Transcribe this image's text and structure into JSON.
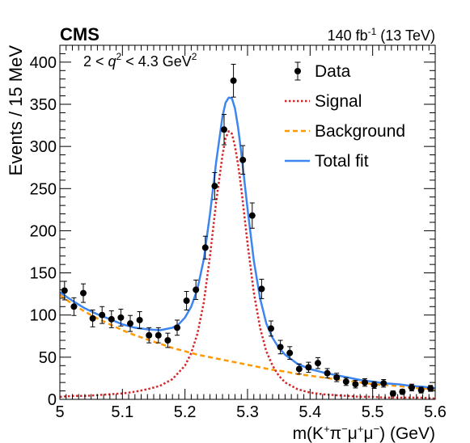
{
  "header": {
    "experiment": "CMS",
    "lumi_prefix": "140 fb",
    "lumi_exp": "-1",
    "lumi_suffix": " (13 TeV)"
  },
  "annotation": {
    "cut_pre": "2 < ",
    "cut_var": "q",
    "cut_exp1": "2",
    "cut_mid": " < 4.3 GeV",
    "cut_exp2": "2"
  },
  "axes": {
    "ylabel": "Events / 15 MeV",
    "xlabel_pre": "m(K",
    "xlabel_s1": "+",
    "xlabel_m1": "π",
    "xlabel_s2": "−",
    "xlabel_m2": "μ",
    "xlabel_s3": "+",
    "xlabel_m3": "μ",
    "xlabel_s4": "−",
    "xlabel_post": ") (GeV)"
  },
  "legend": {
    "data_label": "Data",
    "signal_label": "Signal",
    "background_label": "Background",
    "total_label": "Total fit"
  },
  "colors": {
    "data": "#000000",
    "signal": "#d62728",
    "background": "#ff9900",
    "total": "#3d85f0"
  },
  "chart_data": {
    "type": "scatter",
    "xlim": [
      5.0,
      5.6
    ],
    "ylim": [
      0,
      420
    ],
    "x_ticks": [
      5,
      5.1,
      5.2,
      5.3,
      5.4,
      5.5,
      5.6
    ],
    "x_tick_labels": [
      "5",
      "5.1",
      "5.2",
      "5.3",
      "5.4",
      "5.5",
      "5.6"
    ],
    "y_ticks": [
      0,
      50,
      100,
      150,
      200,
      250,
      300,
      350,
      400
    ],
    "y_tick_labels": [
      "0",
      "50",
      "100",
      "150",
      "200",
      "250",
      "300",
      "350",
      "400"
    ],
    "legend_position": "top-right",
    "series": [
      {
        "name": "Data",
        "kind": "points-with-errors",
        "x": [
          5.0075,
          5.0225,
          5.0375,
          5.0525,
          5.0675,
          5.0825,
          5.0975,
          5.1125,
          5.1275,
          5.1425,
          5.1575,
          5.1725,
          5.1875,
          5.2025,
          5.2175,
          5.2325,
          5.2475,
          5.2625,
          5.2775,
          5.2925,
          5.3075,
          5.3225,
          5.3375,
          5.3525,
          5.3675,
          5.3825,
          5.3975,
          5.4125,
          5.4275,
          5.4425,
          5.4575,
          5.4725,
          5.4875,
          5.5025,
          5.5175,
          5.5325,
          5.5475,
          5.5625,
          5.5775,
          5.5925
        ],
        "y": [
          129,
          110,
          126,
          96,
          100,
          95,
          97,
          90,
          94,
          76,
          76,
          70,
          85,
          117,
          130,
          180,
          253,
          320,
          378,
          284,
          218,
          131,
          84,
          62,
          55,
          36,
          38,
          43,
          31,
          26,
          21,
          18,
          20,
          17,
          19,
          7,
          9,
          14,
          11,
          13
        ],
        "err": [
          11,
          10.5,
          11,
          10,
          10,
          10,
          10,
          9.5,
          10,
          9,
          9,
          8.5,
          9,
          11,
          11.5,
          13.5,
          16,
          18,
          19.5,
          17,
          15,
          11.5,
          9,
          8,
          7.5,
          6,
          6,
          6.5,
          5.5,
          5,
          4.5,
          4.5,
          4.5,
          4,
          4.5,
          3,
          3,
          4,
          3.5,
          3.5
        ]
      },
      {
        "name": "Signal",
        "kind": "curve",
        "x": [
          5.0,
          5.02,
          5.04,
          5.06,
          5.08,
          5.1,
          5.12,
          5.14,
          5.16,
          5.18,
          5.2,
          5.21,
          5.22,
          5.23,
          5.24,
          5.25,
          5.26,
          5.265,
          5.27,
          5.275,
          5.28,
          5.285,
          5.29,
          5.3,
          5.31,
          5.32,
          5.33,
          5.34,
          5.35,
          5.36,
          5.38,
          5.4,
          5.42,
          5.44,
          5.46,
          5.48,
          5.5,
          5.52,
          5.54,
          5.56,
          5.58,
          5.6
        ],
        "y": [
          3,
          4,
          4,
          5,
          6,
          7,
          9,
          12,
          16,
          24,
          40,
          55,
          78,
          115,
          170,
          235,
          290,
          310,
          318,
          315,
          300,
          278,
          250,
          185,
          127,
          85,
          57,
          40,
          28,
          20,
          12,
          8,
          6,
          5,
          4,
          3,
          3,
          2,
          2,
          2,
          2,
          1
        ]
      },
      {
        "name": "Background",
        "kind": "curve",
        "x": [
          5.0,
          5.02,
          5.04,
          5.06,
          5.08,
          5.1,
          5.12,
          5.14,
          5.16,
          5.18,
          5.2,
          5.22,
          5.24,
          5.26,
          5.28,
          5.3,
          5.32,
          5.34,
          5.36,
          5.38,
          5.4,
          5.42,
          5.44,
          5.46,
          5.48,
          5.5,
          5.52,
          5.54,
          5.56,
          5.58,
          5.6
        ],
        "y": [
          124,
          113,
          104,
          96,
          89,
          82,
          76,
          71,
          66,
          61,
          57,
          53,
          50,
          47,
          44,
          41,
          38,
          35,
          33,
          30,
          28,
          26,
          24,
          22,
          20,
          18,
          17,
          16,
          14,
          13,
          12
        ]
      },
      {
        "name": "Total fit",
        "kind": "curve",
        "x": [
          5.0,
          5.02,
          5.04,
          5.06,
          5.08,
          5.1,
          5.12,
          5.14,
          5.16,
          5.18,
          5.19,
          5.2,
          5.21,
          5.22,
          5.23,
          5.24,
          5.25,
          5.26,
          5.265,
          5.27,
          5.275,
          5.28,
          5.285,
          5.29,
          5.3,
          5.31,
          5.32,
          5.33,
          5.34,
          5.35,
          5.36,
          5.38,
          5.4,
          5.42,
          5.44,
          5.46,
          5.48,
          5.5,
          5.52,
          5.54,
          5.56,
          5.58,
          5.6
        ],
        "y": [
          127,
          117,
          108,
          101,
          95,
          89,
          85,
          83,
          82,
          85,
          89,
          97,
          110,
          131,
          166,
          220,
          282,
          336,
          352,
          358,
          357,
          345,
          322,
          292,
          226,
          165,
          120,
          90,
          73,
          61,
          53,
          42,
          36,
          32,
          29,
          26,
          23,
          21,
          19,
          18,
          16,
          15,
          13
        ]
      }
    ]
  }
}
